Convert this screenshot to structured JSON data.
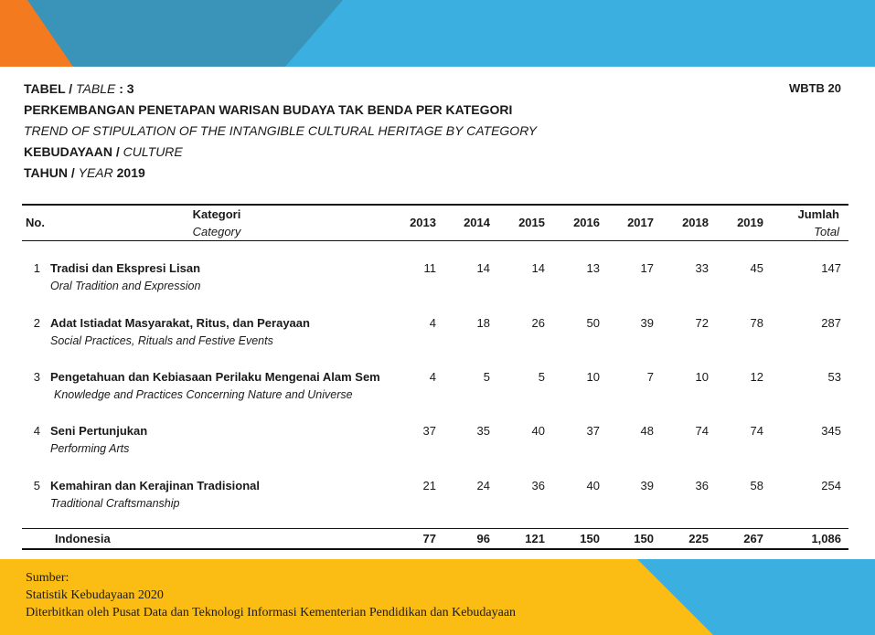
{
  "header": {
    "table_label_id": "TABEL /",
    "table_label_en": "TABLE",
    "table_number": ": 3",
    "code": "WBTB 20",
    "title_id": "PERKEMBANGAN PENETAPAN WARISAN BUDAYA TAK BENDA PER KATEGORI",
    "title_en": "TREND OF STIPULATION OF THE INTANGIBLE CULTURAL HERITAGE BY CATEGORY",
    "domain_id": "KEBUDAYAAN /",
    "domain_en": "CULTURE",
    "year_label_id": "TAHUN /",
    "year_label_en": "YEAR",
    "year_value": "2019"
  },
  "table": {
    "col_no": "No.",
    "col_category_id": "Kategori",
    "col_category_en": "Category",
    "years": [
      "2013",
      "2014",
      "2015",
      "2016",
      "2017",
      "2018",
      "2019"
    ],
    "col_total_id": "Jumlah",
    "col_total_en": "Total",
    "rows": [
      {
        "no": "1",
        "name_id": "Tradisi dan Ekspresi Lisan",
        "name_en": "Oral Tradition and Expression",
        "values": [
          "11",
          "14",
          "14",
          "13",
          "17",
          "33",
          "45"
        ],
        "total": "147"
      },
      {
        "no": "2",
        "name_id": "Adat Istiadat Masyarakat, Ritus, dan Perayaan",
        "name_en": "Social Practices, Rituals and Festive Events",
        "values": [
          "4",
          "18",
          "26",
          "50",
          "39",
          "72",
          "78"
        ],
        "total": "287"
      },
      {
        "no": "3",
        "name_id": "Pengetahuan dan Kebiasaan Perilaku Mengenai Alam Sem",
        "name_en": "Knowledge and Practices Concerning Nature and Universe",
        "values": [
          "4",
          "5",
          "5",
          "10",
          "7",
          "10",
          "12"
        ],
        "total": "53"
      },
      {
        "no": "4",
        "name_id": "Seni Pertunjukan",
        "name_en": "Performing Arts",
        "values": [
          "37",
          "35",
          "40",
          "37",
          "48",
          "74",
          "74"
        ],
        "total": "345"
      },
      {
        "no": "5",
        "name_id": "Kemahiran dan Kerajinan Tradisional",
        "name_en": "Traditional Craftsmanship",
        "values": [
          "21",
          "24",
          "36",
          "40",
          "39",
          "36",
          "58"
        ],
        "total": "254"
      }
    ],
    "footer": {
      "label": "Indonesia",
      "values": [
        "77",
        "96",
        "121",
        "150",
        "150",
        "225",
        "267"
      ],
      "total": "1,086"
    }
  },
  "source": {
    "label": "Sumber:",
    "line1": "Statistik  Kebudayaan  2020",
    "line2": "Diterbitkan  oleh  Pusat Data  dan Teknologi  Informasi  Kementerian  Pendidikan  dan Kebudayaan"
  },
  "colors": {
    "banner_blue": "#3bb0e0",
    "banner_dark_blue": "#3a93b8",
    "banner_orange": "#f47a20",
    "banner_yellow": "#fbbd13"
  }
}
